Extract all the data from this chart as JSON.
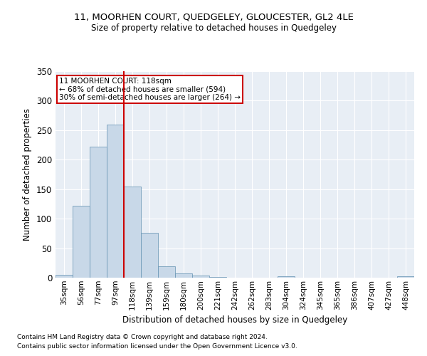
{
  "title": "11, MOORHEN COURT, QUEDGELEY, GLOUCESTER, GL2 4LE",
  "subtitle": "Size of property relative to detached houses in Quedgeley",
  "xlabel": "Distribution of detached houses by size in Quedgeley",
  "ylabel": "Number of detached properties",
  "footnote1": "Contains HM Land Registry data © Crown copyright and database right 2024.",
  "footnote2": "Contains public sector information licensed under the Open Government Licence v3.0.",
  "annotation_line1": "11 MOORHEN COURT: 118sqm",
  "annotation_line2": "← 68% of detached houses are smaller (594)",
  "annotation_line3": "30% of semi-detached houses are larger (264) →",
  "bar_color": "#c8d8e8",
  "bar_edge_color": "#6090b0",
  "vline_color": "#cc0000",
  "bg_color": "#e8eef5",
  "annotation_box_color": "#cc0000",
  "categories": [
    "35sqm",
    "56sqm",
    "77sqm",
    "97sqm",
    "118sqm",
    "139sqm",
    "159sqm",
    "180sqm",
    "200sqm",
    "221sqm",
    "242sqm",
    "262sqm",
    "283sqm",
    "304sqm",
    "324sqm",
    "345sqm",
    "365sqm",
    "386sqm",
    "407sqm",
    "427sqm",
    "448sqm"
  ],
  "values": [
    5,
    122,
    222,
    260,
    155,
    76,
    19,
    7,
    4,
    1,
    0,
    0,
    0,
    2,
    0,
    0,
    0,
    0,
    0,
    0,
    2
  ],
  "ylim": [
    0,
    350
  ],
  "yticks": [
    0,
    50,
    100,
    150,
    200,
    250,
    300,
    350
  ]
}
